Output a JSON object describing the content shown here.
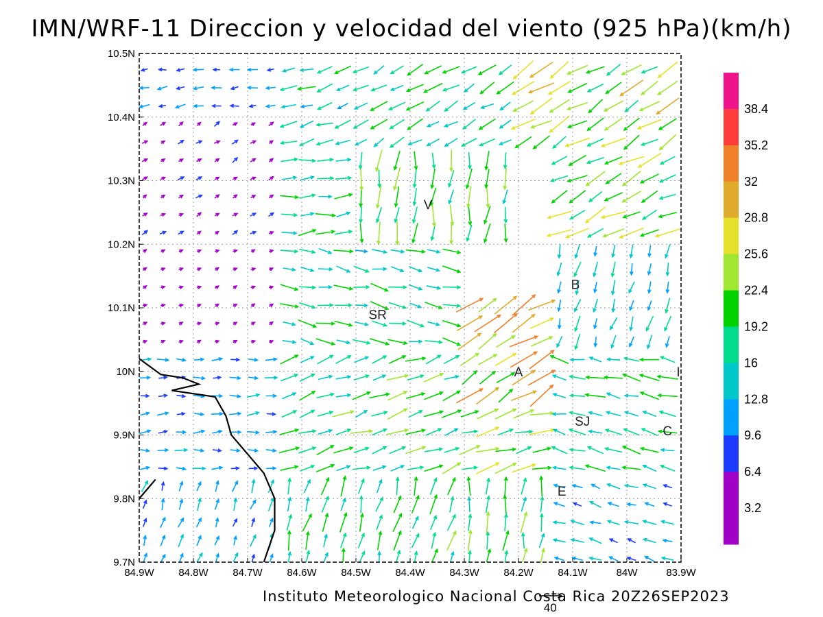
{
  "chart_data": {
    "type": "vector-field",
    "title": "IMN/WRF-11 Direccion y velocidad del viento (925 hPa)(km/h)",
    "footer": "Instituto Meteorologico Nacional Costa Rica 20Z26SEP2023",
    "reference_vector": {
      "label": "40",
      "speed": 40
    },
    "x_ticks": [
      "84.9W",
      "84.8W",
      "84.7W",
      "84.6W",
      "84.5W",
      "84.4W",
      "84.3W",
      "84.2W",
      "84.1W",
      "84W",
      "83.9W"
    ],
    "y_ticks": [
      "10.5N",
      "10.4N",
      "10.3N",
      "10.2N",
      "10.1N",
      "10N",
      "9.9N",
      "9.8N",
      "9.7N"
    ],
    "xlim": [
      -84.9,
      -83.9
    ],
    "ylim": [
      9.7,
      10.5
    ],
    "colorbar": {
      "labels": [
        "38.4",
        "35.2",
        "32",
        "28.8",
        "25.6",
        "22.4",
        "19.2",
        "16",
        "12.8",
        "9.6",
        "6.4",
        "3.2"
      ],
      "colors": [
        "#f0148c",
        "#ff3c3c",
        "#f07f2a",
        "#e0aa2a",
        "#e6e12a",
        "#a0e632",
        "#00d200",
        "#00dc8c",
        "#00c8c8",
        "#00a0ff",
        "#1e3cff",
        "#a000c8",
        "#a000c8"
      ]
    },
    "stations": [
      {
        "label": "V",
        "lon": -84.367,
        "lat": 10.263
      },
      {
        "label": "SR",
        "lon": -84.46,
        "lat": 10.09
      },
      {
        "label": "B",
        "lon": -84.095,
        "lat": 10.137
      },
      {
        "label": "A",
        "lon": -84.2,
        "lat": 10.0
      },
      {
        "label": "SJ",
        "lon": -84.082,
        "lat": 9.922
      },
      {
        "label": "C",
        "lon": -83.925,
        "lat": 9.907
      },
      {
        "label": "E",
        "lon": -84.12,
        "lat": 9.812
      },
      {
        "label": "I",
        "lon": -83.905,
        "lat": 10.0
      }
    ],
    "coastline": [
      [
        -84.9,
        10.02
      ],
      [
        -84.86,
        9.995
      ],
      [
        -84.82,
        9.99
      ],
      [
        -84.79,
        9.98
      ],
      [
        -84.84,
        9.97
      ],
      [
        -84.76,
        9.96
      ],
      [
        -84.74,
        9.93
      ],
      [
        -84.73,
        9.9
      ],
      [
        -84.7,
        9.87
      ],
      [
        -84.67,
        9.84
      ],
      [
        -84.65,
        9.8
      ],
      [
        -84.65,
        9.75
      ],
      [
        -84.67,
        9.7
      ]
    ],
    "coastline2": [
      [
        -84.9,
        9.8
      ],
      [
        -84.87,
        9.83
      ]
    ],
    "wind_regions": [
      {
        "lon": [
          -84.9,
          -84.65
        ],
        "lat": [
          10.4,
          10.5
        ],
        "u": -1.0,
        "v": -0.15,
        "speed": 9
      },
      {
        "lon": [
          -84.9,
          -84.65
        ],
        "lat": [
          10.2,
          10.4
        ],
        "u": 0.8,
        "v": 0.5,
        "speed": 6
      },
      {
        "lon": [
          -84.9,
          -84.65
        ],
        "lat": [
          10.02,
          10.2
        ],
        "u": 0.9,
        "v": 0.4,
        "speed": 4
      },
      {
        "lon": [
          -84.9,
          -84.65
        ],
        "lat": [
          9.84,
          10.02
        ],
        "u": 1.0,
        "v": 0.05,
        "speed": 11
      },
      {
        "lon": [
          -84.9,
          -84.65
        ],
        "lat": [
          9.7,
          9.84
        ],
        "u": 0.35,
        "v": 1.0,
        "speed": 12
      },
      {
        "lon": [
          -84.65,
          -84.5
        ],
        "lat": [
          10.35,
          10.5
        ],
        "u": -1.0,
        "v": -0.3,
        "speed": 16
      },
      {
        "lon": [
          -84.65,
          -84.5
        ],
        "lat": [
          10.2,
          10.35
        ],
        "u": 1.0,
        "v": 0.1,
        "speed": 18
      },
      {
        "lon": [
          -84.65,
          -84.3
        ],
        "lat": [
          10.02,
          10.2
        ],
        "u": 1.0,
        "v": -0.2,
        "speed": 17
      },
      {
        "lon": [
          -84.65,
          -84.3
        ],
        "lat": [
          9.84,
          10.02
        ],
        "u": 1.0,
        "v": 0.35,
        "speed": 19
      },
      {
        "lon": [
          -84.65,
          -84.3
        ],
        "lat": [
          9.7,
          9.84
        ],
        "u": 0.25,
        "v": 1.0,
        "speed": 18
      },
      {
        "lon": [
          -84.5,
          -84.2
        ],
        "lat": [
          10.35,
          10.5
        ],
        "u": -1.0,
        "v": -0.55,
        "speed": 18
      },
      {
        "lon": [
          -84.5,
          -84.2
        ],
        "lat": [
          10.2,
          10.35
        ],
        "u": -0.1,
        "v": -1.0,
        "speed": 20
      },
      {
        "lon": [
          -84.3,
          -84.15
        ],
        "lat": [
          9.96,
          10.12
        ],
        "u": 1.0,
        "v": 0.6,
        "speed": 27
      },
      {
        "lon": [
          -84.3,
          -84.15
        ],
        "lat": [
          9.84,
          9.96
        ],
        "u": 1.0,
        "v": 0.3,
        "speed": 22
      },
      {
        "lon": [
          -84.3,
          -84.15
        ],
        "lat": [
          9.7,
          9.84
        ],
        "u": 0.1,
        "v": 1.0,
        "speed": 19
      },
      {
        "lon": [
          -84.2,
          -83.9
        ],
        "lat": [
          10.35,
          10.5
        ],
        "u": -1.0,
        "v": -0.6,
        "speed": 24
      },
      {
        "lon": [
          -84.15,
          -83.9
        ],
        "lat": [
          10.2,
          10.35
        ],
        "u": -1.0,
        "v": -0.5,
        "speed": 23
      },
      {
        "lon": [
          -84.15,
          -83.9
        ],
        "lat": [
          10.02,
          10.2
        ],
        "u": -0.3,
        "v": -1.0,
        "speed": 14
      },
      {
        "lon": [
          -84.15,
          -83.9
        ],
        "lat": [
          9.84,
          10.02
        ],
        "u": -1.0,
        "v": 0.2,
        "speed": 18
      },
      {
        "lon": [
          -84.15,
          -83.9
        ],
        "lat": [
          9.7,
          9.84
        ],
        "u": -1.0,
        "v": 0.3,
        "speed": 12
      }
    ]
  }
}
